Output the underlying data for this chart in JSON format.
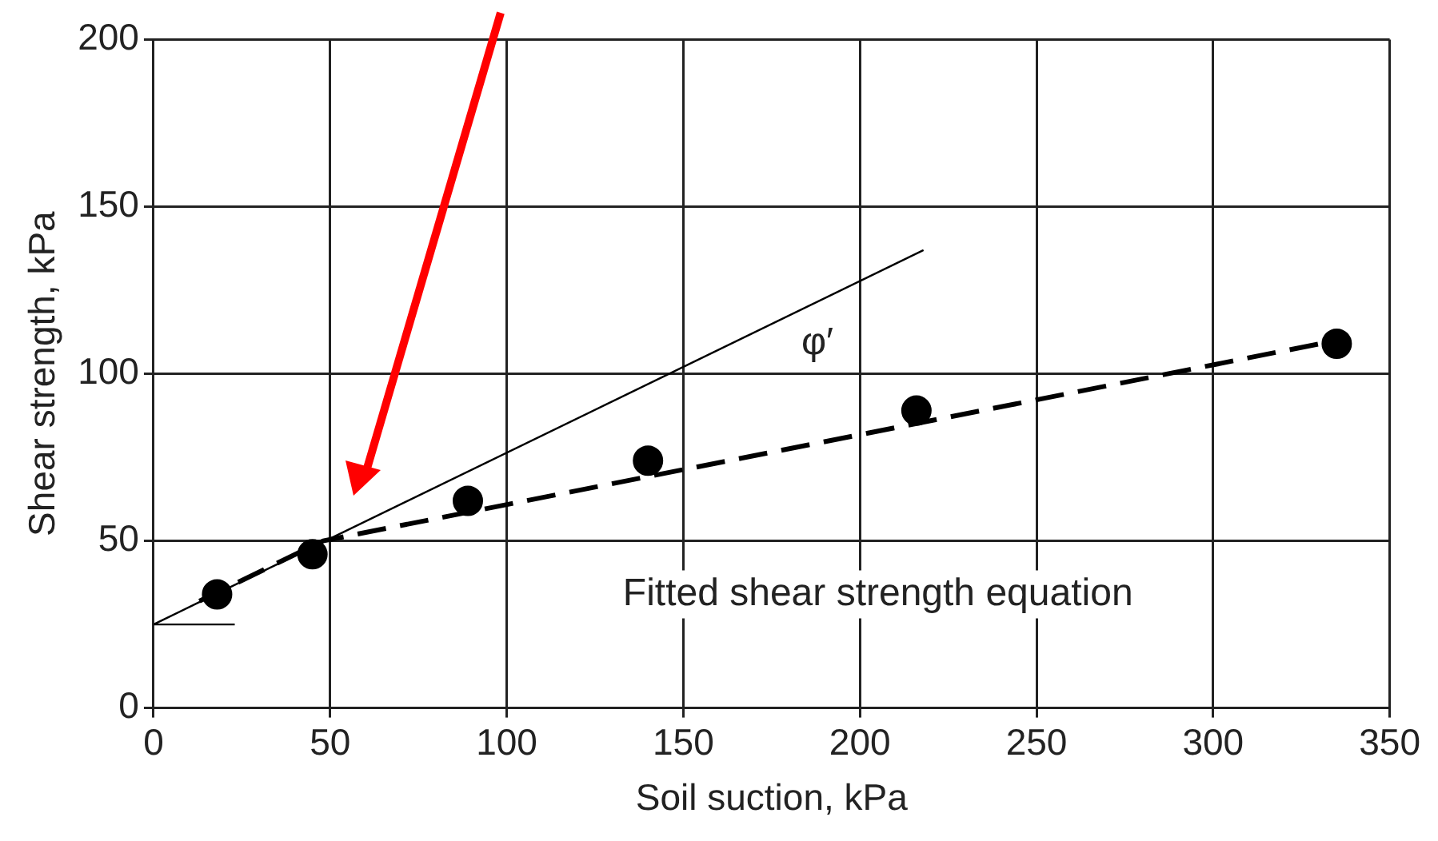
{
  "chart_data": {
    "type": "scatter",
    "xlabel": "Soil suction, kPa",
    "ylabel": "Shear strength, kPa",
    "xlim": [
      0,
      350
    ],
    "ylim": [
      0,
      200
    ],
    "xticks": [
      0,
      50,
      100,
      150,
      200,
      250,
      300,
      350
    ],
    "yticks": [
      0,
      50,
      100,
      150,
      200
    ],
    "grid": true,
    "legend": false,
    "series": [
      {
        "type": "line",
        "color": "#000000",
        "x": [
          0,
          218
        ],
        "values": [
          25,
          137
        ],
        "line_style": "solid",
        "marker": "none"
      },
      {
        "type": "line",
        "color": "#000000",
        "x": [
          0,
          23
        ],
        "values": [
          25,
          25
        ],
        "line_style": "solid",
        "marker": "none"
      },
      {
        "type": "line",
        "color": "#000000",
        "x": [
          13,
          48,
          335
        ],
        "values": [
          32,
          50,
          110
        ],
        "line_style": "dashed",
        "marker": "none"
      },
      {
        "type": "scatter",
        "color": "#000000",
        "x": [
          18,
          45,
          89,
          140,
          216,
          335
        ],
        "values": [
          34,
          46,
          62,
          74,
          89,
          109
        ],
        "marker": "circle"
      }
    ],
    "annotations": [
      "φ′",
      "Fitted shear strength equation"
    ]
  }
}
